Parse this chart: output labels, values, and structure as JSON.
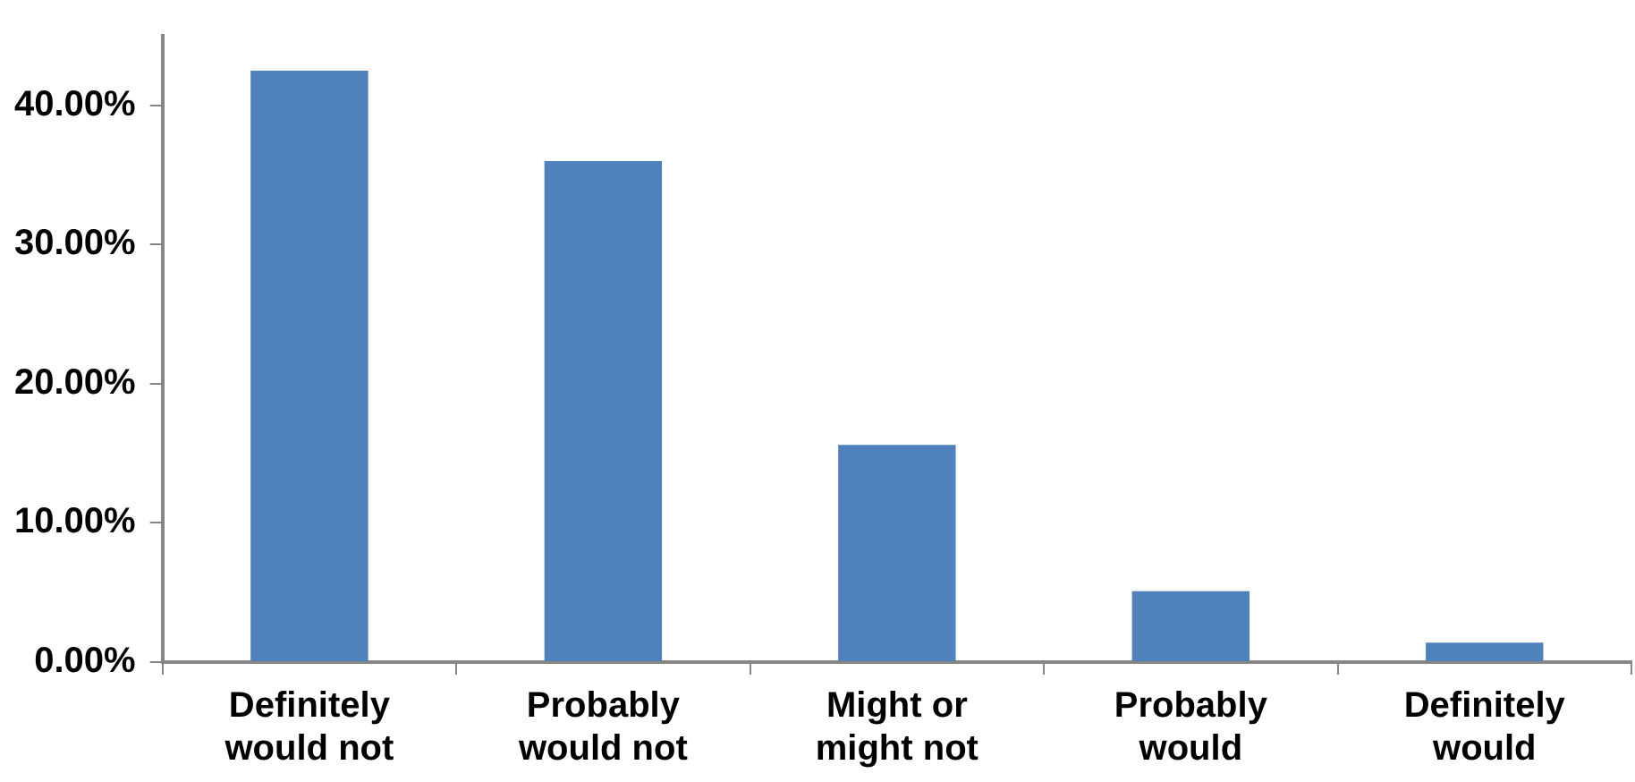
{
  "chart_data": {
    "type": "bar",
    "categories": [
      "Definitely would not",
      "Probably would not",
      "Might or might not",
      "Probably would",
      "Definitely would"
    ],
    "values": [
      42.5,
      36.0,
      15.6,
      5.1,
      1.4
    ],
    "color": "#4f81bd",
    "ylim": [
      0,
      45
    ],
    "yticks": [
      {
        "value": 0,
        "label": "0.00%"
      },
      {
        "value": 10,
        "label": "10.00%"
      },
      {
        "value": 20,
        "label": "20.00%"
      },
      {
        "value": 30,
        "label": "30.00%"
      },
      {
        "value": 40,
        "label": "40.00%"
      }
    ],
    "grid": false,
    "legend": false
  }
}
